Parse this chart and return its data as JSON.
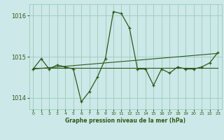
{
  "xlabel": "Graphe pression niveau de la mer (hPa)",
  "background_color": "#cce8e8",
  "grid_color": "#99ccbb",
  "line_color": "#2d5a1b",
  "hours": [
    0,
    1,
    2,
    3,
    4,
    5,
    6,
    7,
    8,
    9,
    10,
    11,
    12,
    13,
    14,
    15,
    16,
    17,
    18,
    19,
    20,
    21,
    22,
    23
  ],
  "pressure": [
    1014.7,
    1014.95,
    1014.7,
    1014.8,
    1014.75,
    1014.7,
    1013.9,
    1014.15,
    1014.5,
    1014.95,
    1016.1,
    1016.05,
    1015.7,
    1014.7,
    1014.7,
    1014.3,
    1014.7,
    1014.6,
    1014.75,
    1014.7,
    1014.7,
    1014.75,
    1014.85,
    1015.1
  ],
  "trend1_x": [
    0,
    23
  ],
  "trend1_y": [
    1014.73,
    1014.73
  ],
  "trend2_x": [
    0,
    23
  ],
  "trend2_y": [
    1014.7,
    1015.08
  ],
  "ylim": [
    1013.72,
    1016.28
  ],
  "yticks": [
    1014,
    1015,
    1016
  ],
  "xticks": [
    0,
    1,
    2,
    3,
    4,
    5,
    6,
    7,
    8,
    9,
    10,
    11,
    12,
    13,
    14,
    15,
    16,
    17,
    18,
    19,
    20,
    21,
    22,
    23
  ]
}
